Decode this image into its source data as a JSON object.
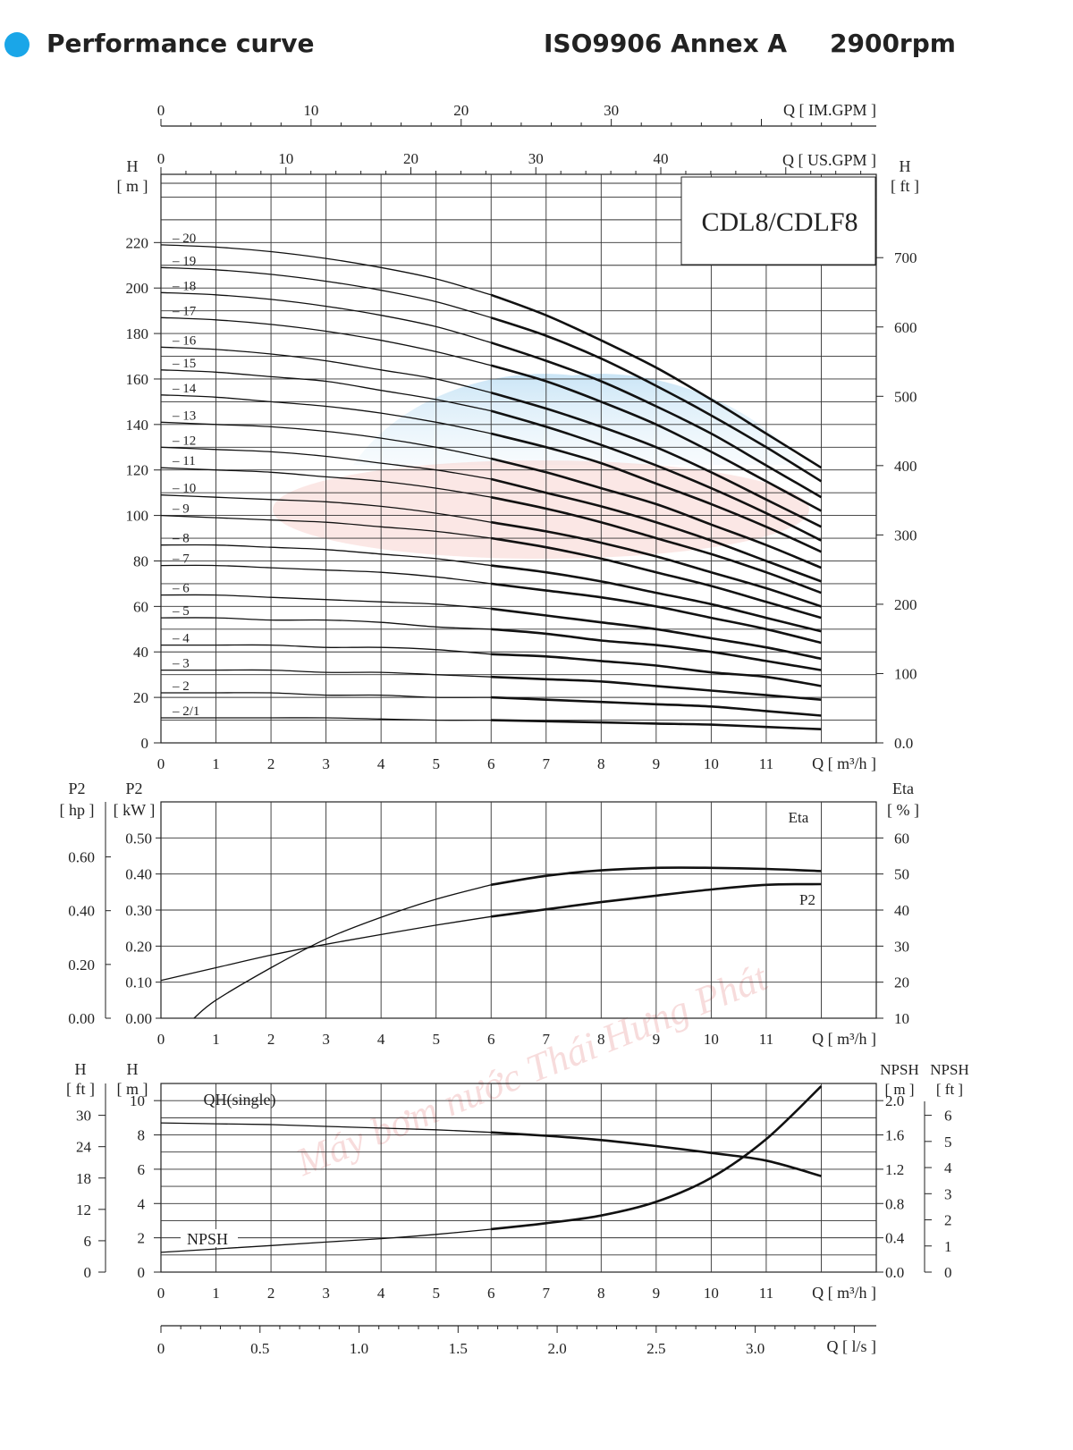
{
  "header": {
    "title": "Performance curve",
    "standard": "ISO9906 Annex A",
    "speed": "2900rpm",
    "bullet_color": "#1aa6e8"
  },
  "model": "CDL8/CDLF8",
  "watermark": "Máy bơm nước Thái Hưng Phát",
  "chart_data": [
    {
      "id": "qh",
      "type": "line",
      "title": "CDL8/CDLF8",
      "xlabel": "Q [ m³/h ]",
      "xlim": [
        0,
        13
      ],
      "x_ticks": [
        "0",
        "1",
        "2",
        "3",
        "4",
        "5",
        "6",
        "7",
        "8",
        "9",
        "10",
        "11"
      ],
      "secondary_x_axes": [
        {
          "label": "Q [ IM.GPM ]",
          "ticks": [
            "0",
            "10",
            "20",
            "30"
          ]
        },
        {
          "label": "Q [ US.GPM ]",
          "ticks": [
            "0",
            "10",
            "20",
            "30",
            "40"
          ]
        }
      ],
      "ylabel_left_name": "H",
      "ylabel_left_unit": "[ m ]",
      "ylim": [
        0,
        250
      ],
      "y_ticks_left": [
        "0",
        "20",
        "40",
        "60",
        "80",
        "100",
        "120",
        "140",
        "160",
        "180",
        "200",
        "220"
      ],
      "ylabel_right_name": "H",
      "ylabel_right_unit": "[ ft ]",
      "y_ticks_right": [
        "0.0",
        "100",
        "200",
        "300",
        "400",
        "500",
        "600",
        "700"
      ],
      "x": [
        0,
        1,
        2,
        3,
        4,
        5,
        6,
        7,
        8,
        9,
        10,
        11,
        12
      ],
      "series": [
        {
          "name": "20",
          "values": [
            219,
            218,
            216,
            213,
            209,
            204,
            197,
            188,
            177,
            165,
            151,
            136,
            121
          ]
        },
        {
          "name": "19",
          "values": [
            209,
            208,
            206,
            203,
            199,
            194,
            187,
            179,
            169,
            157,
            144,
            130,
            115
          ]
        },
        {
          "name": "18",
          "values": [
            198,
            197,
            195,
            192,
            188,
            183,
            176,
            168,
            159,
            148,
            136,
            122,
            108
          ]
        },
        {
          "name": "17",
          "values": [
            187,
            186,
            184,
            181,
            177,
            172,
            166,
            159,
            150,
            140,
            128,
            115,
            102
          ]
        },
        {
          "name": "16",
          "values": [
            174,
            173,
            171,
            168,
            164,
            160,
            154,
            147,
            139,
            130,
            119,
            107,
            95
          ]
        },
        {
          "name": "15",
          "values": [
            164,
            163,
            161,
            159,
            155,
            151,
            146,
            139,
            131,
            122,
            112,
            101,
            89
          ]
        },
        {
          "name": "14",
          "values": [
            153,
            152,
            150,
            148,
            145,
            141,
            136,
            130,
            123,
            114,
            105,
            95,
            84
          ]
        },
        {
          "name": "13",
          "values": [
            141,
            140,
            139,
            137,
            134,
            130,
            125,
            119,
            112,
            105,
            96,
            87,
            77
          ]
        },
        {
          "name": "12",
          "values": [
            130,
            129,
            128,
            126,
            123,
            120,
            116,
            110,
            104,
            97,
            89,
            80,
            71
          ]
        },
        {
          "name": "11",
          "values": [
            121,
            120,
            119,
            117,
            115,
            112,
            108,
            103,
            97,
            90,
            83,
            75,
            66
          ]
        },
        {
          "name": "10",
          "values": [
            109,
            108,
            107,
            106,
            104,
            101,
            97,
            93,
            88,
            82,
            75,
            68,
            60
          ]
        },
        {
          "name": "9",
          "values": [
            100,
            99,
            98,
            97,
            95,
            93,
            90,
            86,
            81,
            75,
            69,
            62,
            55
          ]
        },
        {
          "name": "8",
          "values": [
            87,
            87,
            86,
            85,
            83,
            81,
            78,
            75,
            71,
            66,
            61,
            55,
            49
          ]
        },
        {
          "name": "7",
          "values": [
            78,
            78,
            77,
            76,
            75,
            73,
            70,
            67,
            64,
            60,
            55,
            50,
            44
          ]
        },
        {
          "name": "6",
          "values": [
            65,
            65,
            64,
            63,
            62,
            61,
            59,
            56,
            53,
            50,
            46,
            42,
            37
          ]
        },
        {
          "name": "5",
          "values": [
            55,
            55,
            54,
            54,
            53,
            51,
            50,
            48,
            45,
            43,
            40,
            36,
            32
          ]
        },
        {
          "name": "4",
          "values": [
            43,
            43,
            43,
            42,
            42,
            41,
            39,
            38,
            36,
            34,
            31,
            29,
            25
          ]
        },
        {
          "name": "3",
          "values": [
            32,
            32,
            32,
            31,
            31,
            30,
            29,
            28,
            27,
            25,
            23,
            21,
            19
          ]
        },
        {
          "name": "2",
          "values": [
            22,
            22,
            22,
            21,
            21,
            20,
            20,
            19,
            18,
            17,
            16,
            14,
            12
          ]
        },
        {
          "name": "2/1",
          "values": [
            11,
            11,
            11,
            11,
            10.5,
            10,
            10,
            9.5,
            9,
            8.5,
            8,
            7,
            6
          ]
        }
      ]
    },
    {
      "id": "power",
      "type": "line",
      "xlabel": "Q [ m³/h ]",
      "xlim": [
        0,
        13
      ],
      "x_ticks": [
        "0",
        "1",
        "2",
        "3",
        "4",
        "5",
        "6",
        "7",
        "8",
        "9",
        "10",
        "11"
      ],
      "y_left_outer_name": "P2",
      "y_left_outer_unit": "[ hp ]",
      "y_left_outer_ticks": [
        "0.00",
        "0.20",
        "0.40",
        "0.60"
      ],
      "ylabel_left_name": "P2",
      "ylabel_left_unit": "[ kW ]",
      "ylim": [
        0,
        0.6
      ],
      "y_ticks_left": [
        "0.00",
        "0.10",
        "0.20",
        "0.30",
        "0.40",
        "0.50"
      ],
      "ylabel_right_name": "Eta",
      "ylabel_right_unit": "[ % ]",
      "ylim_right": [
        10,
        70
      ],
      "y_ticks_right": [
        "10",
        "20",
        "30",
        "40",
        "50",
        "60"
      ],
      "series": [
        {
          "name": "Eta",
          "axis": "right",
          "x": [
            0.6,
            1,
            2,
            3,
            4,
            5,
            6,
            7,
            8,
            9,
            10,
            11,
            12
          ],
          "values": [
            10,
            15,
            24,
            32,
            38,
            43,
            47,
            49.5,
            51,
            51.7,
            51.7,
            51.4,
            50.8
          ]
        },
        {
          "name": "P2",
          "axis": "left",
          "x": [
            0,
            1,
            2,
            3,
            4,
            5,
            6,
            7,
            8,
            9,
            10,
            11,
            12
          ],
          "values": [
            0.105,
            0.14,
            0.175,
            0.205,
            0.232,
            0.258,
            0.282,
            0.302,
            0.322,
            0.34,
            0.357,
            0.37,
            0.372
          ]
        }
      ]
    },
    {
      "id": "npsh",
      "type": "line",
      "xlabel": "Q [ m³/h ]",
      "xlim": [
        0,
        13
      ],
      "x_ticks": [
        "0",
        "1",
        "2",
        "3",
        "4",
        "5",
        "6",
        "7",
        "8",
        "9",
        "10",
        "11"
      ],
      "y_left_outer_name": "H",
      "y_left_outer_unit": "[ ft ]",
      "y_left_outer_ticks": [
        "0",
        "6",
        "12",
        "18",
        "24",
        "30"
      ],
      "ylabel_left_name": "H",
      "ylabel_left_unit": "[ m ]",
      "ylim": [
        0,
        11
      ],
      "y_ticks_left": [
        "0",
        "2",
        "4",
        "6",
        "8",
        "10"
      ],
      "ylabel_right_name": "NPSH",
      "ylabel_right_unit": "[ m ]",
      "ylim_right": [
        0,
        2.2
      ],
      "y_ticks_right": [
        "0.0",
        "0.4",
        "0.8",
        "1.2",
        "1.6",
        "2.0"
      ],
      "y_right_outer_name": "NPSH",
      "y_right_outer_unit": "[ ft ]",
      "y_right_outer_ticks": [
        "0",
        "1",
        "2",
        "3",
        "4",
        "5",
        "6"
      ],
      "series": [
        {
          "name": "QH(single)",
          "axis": "left",
          "x": [
            0,
            1,
            2,
            3,
            4,
            5,
            6,
            7,
            8,
            9,
            10,
            11,
            12
          ],
          "values": [
            8.7,
            8.65,
            8.6,
            8.5,
            8.4,
            8.3,
            8.15,
            7.95,
            7.7,
            7.35,
            6.95,
            6.5,
            5.6
          ]
        },
        {
          "name": "NPSH",
          "axis": "right",
          "x": [
            0,
            1,
            2,
            3,
            4,
            5,
            6,
            7,
            8,
            9,
            10,
            11,
            12
          ],
          "values": [
            0.23,
            0.27,
            0.31,
            0.35,
            0.39,
            0.44,
            0.5,
            0.57,
            0.66,
            0.82,
            1.1,
            1.55,
            2.17
          ]
        }
      ]
    },
    {
      "id": "flow_ls",
      "type": "axis",
      "xlabel": "Q [ l/s ]",
      "x_ticks": [
        "0",
        "0.5",
        "1.0",
        "1.5",
        "2.0",
        "2.5",
        "3.0"
      ]
    }
  ]
}
